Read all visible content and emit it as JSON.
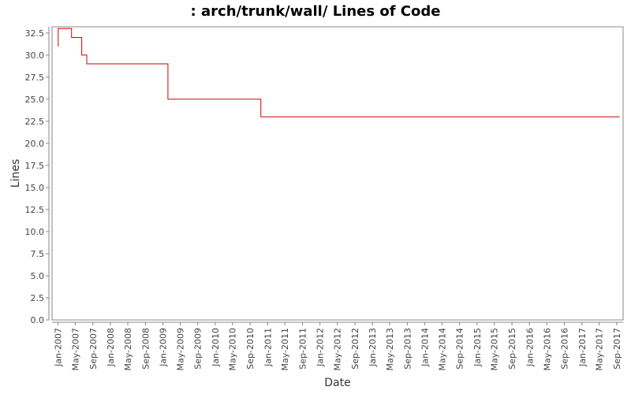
{
  "chart_data": {
    "type": "line",
    "title": ": arch/trunk/wall/ Lines of Code",
    "xlabel": "Date",
    "ylabel": "Lines",
    "ylim": [
      0,
      33.2
    ],
    "xlim": [
      "2006-11-20",
      "2017-10-15"
    ],
    "y_ticks": [
      "0.0",
      "2.5",
      "5.0",
      "7.5",
      "10.0",
      "12.5",
      "15.0",
      "17.5",
      "20.0",
      "22.5",
      "25.0",
      "27.5",
      "30.0",
      "32.5"
    ],
    "x_ticks": [
      "Jan-2007",
      "May-2007",
      "Sep-2007",
      "Jan-2008",
      "May-2008",
      "Sep-2008",
      "Jan-2009",
      "May-2009",
      "Sep-2009",
      "Jan-2010",
      "May-2010",
      "Sep-2010",
      "Jan-2011",
      "May-2011",
      "Sep-2011",
      "Jan-2012",
      "May-2012",
      "Sep-2012",
      "Jan-2013",
      "May-2013",
      "Sep-2013",
      "Jan-2014",
      "May-2014",
      "Sep-2014",
      "Jan-2015",
      "May-2015",
      "Sep-2015",
      "Jan-2016",
      "May-2016",
      "Sep-2016",
      "Jan-2017",
      "May-2017",
      "Sep-2017"
    ],
    "grid": false,
    "legend": "none",
    "series": [
      {
        "color": "#cc0000",
        "step": true,
        "x": [
          "2007-01-01",
          "2007-01-02",
          "2007-04-05",
          "2007-06-15",
          "2007-07-20",
          "2009-02-05",
          "2010-11-15",
          "2017-09-20"
        ],
        "values": [
          31,
          33,
          32,
          30,
          29,
          25,
          23,
          23
        ]
      }
    ]
  }
}
